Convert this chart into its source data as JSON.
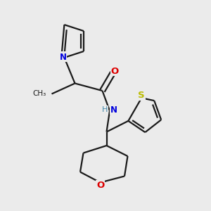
{
  "background_color": "#ebebeb",
  "bond_color": "#1a1a1a",
  "atom_colors": {
    "N": "#0000dd",
    "O": "#dd0000",
    "S": "#bbbb00",
    "NH_color": "#4488aa",
    "C": "#1a1a1a"
  },
  "lw": 1.6
}
